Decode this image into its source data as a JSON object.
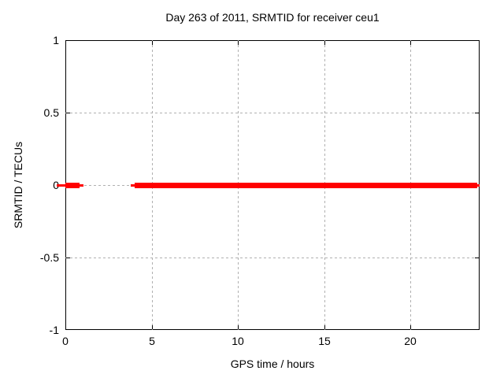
{
  "colors": {
    "line": "#ff0000",
    "grid": "#b0b0b0",
    "axis": "#000000",
    "background": "#ffffff"
  },
  "chart_data": {
    "type": "line",
    "title": "Day 263 of 2011, SRMTID for receiver ceu1",
    "xlabel": "GPS time / hours",
    "ylabel": "SRMTID / TECUs",
    "xlim": [
      0,
      24
    ],
    "ylim": [
      -1,
      1
    ],
    "grid": true,
    "legend": "none",
    "x_ticks": [
      {
        "v": 0,
        "label": "0"
      },
      {
        "v": 5,
        "label": "5"
      },
      {
        "v": 10,
        "label": "10"
      },
      {
        "v": 15,
        "label": "15"
      },
      {
        "v": 20,
        "label": "20"
      }
    ],
    "y_ticks": [
      {
        "v": -1,
        "label": "-1"
      },
      {
        "v": -0.5,
        "label": "-0.5"
      },
      {
        "v": 0,
        "label": "0"
      },
      {
        "v": 0.5,
        "label": "0.5"
      },
      {
        "v": 1,
        "label": "1"
      }
    ],
    "series": [
      {
        "name": "SRMTID",
        "color": "#ff0000",
        "value": 0,
        "intervals_hours": [
          [
            0,
            1.05
          ],
          [
            3.8,
            24
          ]
        ]
      }
    ],
    "render_segments": [
      {
        "x1": -0.5,
        "x2": 0,
        "y": 0,
        "weight": "thin"
      },
      {
        "x1": 0,
        "x2": 0.82,
        "y": 0,
        "weight": "thick"
      },
      {
        "x1": 0.82,
        "x2": 1.05,
        "y": 0,
        "weight": "thin"
      },
      {
        "x1": 3.79,
        "x2": 4.02,
        "y": 0,
        "weight": "thin"
      },
      {
        "x1": 4.02,
        "x2": 23.86,
        "y": 0,
        "weight": "thick"
      },
      {
        "x1": 23.86,
        "x2": 24.0,
        "y": 0,
        "weight": "thin"
      }
    ]
  }
}
